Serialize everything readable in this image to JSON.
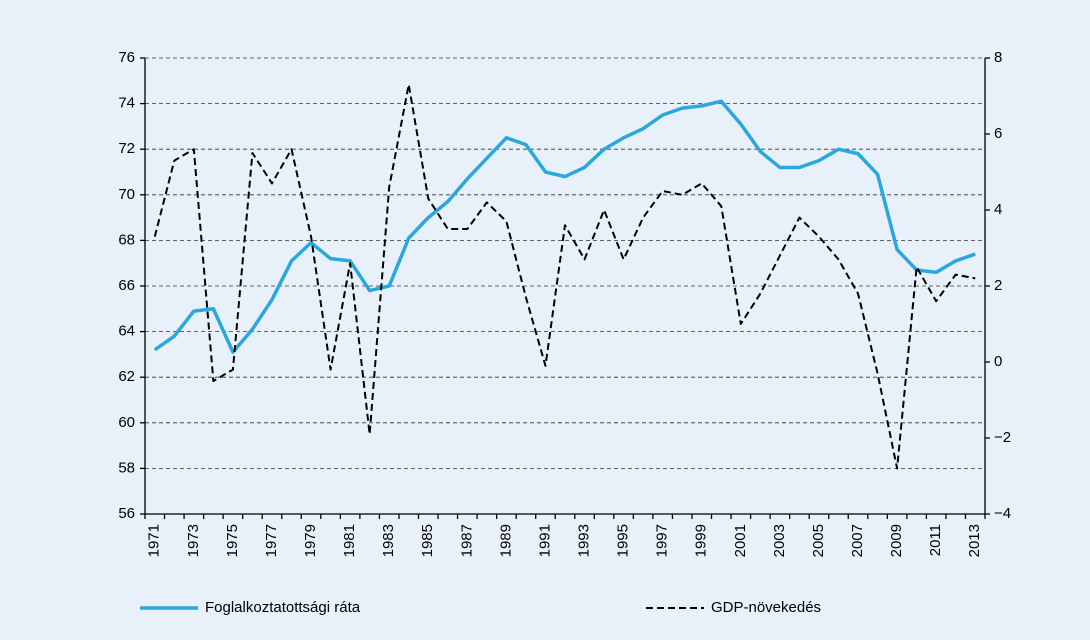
{
  "chart_data": {
    "type": "line",
    "categories": [
      "1971",
      null,
      "1973",
      null,
      "1975",
      null,
      "1977",
      null,
      "1979",
      null,
      "1981",
      null,
      "1983",
      null,
      "1985",
      null,
      "1987",
      null,
      "1989",
      null,
      "1991",
      null,
      "1993",
      null,
      "1995",
      null,
      "1997",
      null,
      "1999",
      null,
      "2001",
      null,
      "2003",
      null,
      "2005",
      null,
      "2007",
      null,
      "2009",
      null,
      "2011",
      null,
      "2013"
    ],
    "series": [
      {
        "name": "Foglalkoztatottsági ráta",
        "color": "#2aa7dc",
        "axis": "y",
        "values": [
          63.2,
          63.8,
          64.9,
          65.0,
          63.1,
          64.1,
          65.4,
          67.1,
          67.9,
          67.2,
          67.1,
          65.8,
          66.0,
          68.1,
          69.0,
          69.7,
          70.7,
          71.6,
          72.5,
          72.2,
          71.0,
          70.8,
          71.2,
          72.0,
          72.5,
          72.9,
          73.5,
          73.8,
          73.9,
          74.1,
          73.1,
          71.9,
          71.2,
          71.2,
          71.5,
          72.0,
          71.8,
          70.9,
          67.6,
          66.7,
          66.6,
          67.1,
          67.4
        ]
      },
      {
        "name": "GDP-növekedés",
        "color": "#000000",
        "axis": "y2",
        "dashed": true,
        "values": [
          3.3,
          5.3,
          5.6,
          -0.5,
          -0.2,
          5.5,
          4.7,
          5.6,
          3.3,
          -0.2,
          2.6,
          -1.9,
          4.6,
          7.3,
          4.3,
          3.5,
          3.5,
          4.2,
          3.7,
          1.7,
          -0.1,
          3.6,
          2.7,
          4.0,
          2.7,
          3.8,
          4.5,
          4.4,
          4.7,
          4.1,
          1.0,
          1.8,
          2.8,
          3.8,
          3.3,
          2.7,
          1.8,
          -0.3,
          -2.8,
          2.5,
          1.6,
          2.3,
          2.2
        ]
      }
    ],
    "ylim": [
      56,
      76
    ],
    "yticks": [
      56,
      58,
      60,
      62,
      64,
      66,
      68,
      70,
      72,
      74,
      76
    ],
    "y2lim": [
      -4,
      8
    ],
    "y2ticks": [
      {
        "value": -4,
        "label": "−4"
      },
      {
        "value": -2,
        "label": "−2"
      },
      0,
      2,
      4,
      6,
      8
    ],
    "grid": true,
    "legend": "bottom"
  }
}
